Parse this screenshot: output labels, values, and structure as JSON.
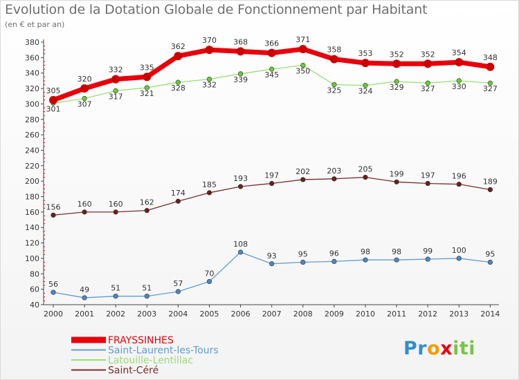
{
  "chart_data": {
    "type": "line",
    "title": "Evolution de la Dotation Globale de Fonctionnement par Habitant",
    "subtitle": "(en € et par an)",
    "xlabel": "",
    "ylabel": "",
    "ylim": [
      40,
      380
    ],
    "yticks": [
      40,
      60,
      80,
      100,
      120,
      140,
      160,
      180,
      200,
      220,
      240,
      260,
      280,
      300,
      320,
      340,
      360,
      380
    ],
    "grid": false,
    "legend": "bottom-left",
    "categories": [
      "2000",
      "2001",
      "2002",
      "2003",
      "2004",
      "2005",
      "2006",
      "2007",
      "2008",
      "2009",
      "2010",
      "2011",
      "2012",
      "2013",
      "2014"
    ],
    "series": [
      {
        "name": "Saint-Céré",
        "color": "#7a2b2b",
        "marker": "#6b1f1f",
        "width": 1.3,
        "labels": "above",
        "values": [
          156,
          160,
          160,
          162,
          174,
          185,
          193,
          197,
          202,
          203,
          205,
          199,
          197,
          196,
          189
        ]
      },
      {
        "name": "Saint-Laurent-les-Tours",
        "color": "#5f9bd1",
        "marker": "#4a87c4",
        "width": 1.3,
        "labels": "above",
        "values": [
          56,
          49,
          51,
          51,
          57,
          70,
          108,
          93,
          95,
          96,
          98,
          98,
          99,
          100,
          95
        ]
      },
      {
        "name": "Latouille-Lentillac",
        "color": "#99dd77",
        "marker": "#66cc33",
        "width": 1.3,
        "labels": "below",
        "values": [
          301,
          307,
          317,
          321,
          328,
          332,
          339,
          345,
          350,
          325,
          324,
          329,
          327,
          330,
          327
        ]
      },
      {
        "name": "FRAYSSINHES",
        "color": "#e8000b",
        "marker": "#cc0000",
        "width": 7,
        "labels": "above",
        "values": [
          305,
          320,
          332,
          335,
          362,
          370,
          368,
          366,
          371,
          358,
          353,
          352,
          352,
          354,
          348
        ]
      }
    ],
    "legend_order": [
      "FRAYSSINHES",
      "Saint-Laurent-les-Tours",
      "Latouille-Lentillac",
      "Saint-Céré"
    ]
  },
  "logo": {
    "letters": [
      "P",
      "r",
      "o",
      "x",
      "i",
      "t",
      "i"
    ],
    "colors": [
      "#2f8fd0",
      "#2f8fd0",
      "#f59a00",
      "#e8000b",
      "#7cc24a",
      "#7cc24a",
      "#7cc24a"
    ]
  }
}
